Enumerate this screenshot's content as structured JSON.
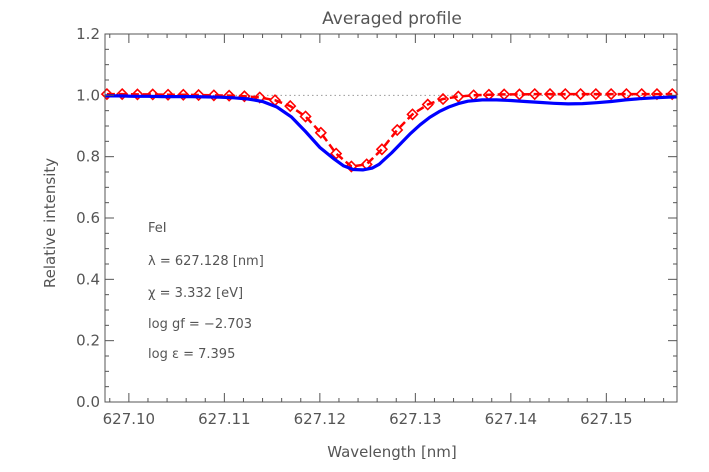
{
  "chart_data": {
    "type": "line",
    "title": "Averaged profile",
    "xlabel": "Wavelength [nm]",
    "ylabel": "Relative intensity",
    "xlim": [
      627.0975,
      627.1574
    ],
    "ylim": [
      0.0,
      1.2
    ],
    "x_ticks": [
      {
        "value": 627.1,
        "label": "627.10"
      },
      {
        "value": 627.11,
        "label": "627.11"
      },
      {
        "value": 627.12,
        "label": "627.12"
      },
      {
        "value": 627.13,
        "label": "627.13"
      },
      {
        "value": 627.14,
        "label": "627.14"
      },
      {
        "value": 627.15,
        "label": "627.15"
      }
    ],
    "y_ticks": [
      {
        "value": 0.0,
        "label": "0.0"
      },
      {
        "value": 0.2,
        "label": "0.2"
      },
      {
        "value": 0.4,
        "label": "0.4"
      },
      {
        "value": 0.6,
        "label": "0.6"
      },
      {
        "value": 0.8,
        "label": "0.8"
      },
      {
        "value": 1.0,
        "label": "1.0"
      },
      {
        "value": 1.2,
        "label": "1.2"
      }
    ],
    "reference_line": {
      "y": 1.0,
      "color": "#999999",
      "style": "dotted"
    },
    "annotations": [
      "FeI",
      "λ = 627.128 [nm]",
      "χ =  3.332 [eV]",
      "log gf = −2.703",
      "log ε =  7.395"
    ],
    "series": [
      {
        "marker": "diamond",
        "color": "#ff0000",
        "x": [
          627.0977,
          627.0993,
          627.1009,
          627.1025,
          627.1041,
          627.1057,
          627.1073,
          627.1089,
          627.1105,
          627.1121,
          627.1137,
          627.1153,
          627.1169,
          627.1185,
          627.1201,
          627.1217,
          627.1233,
          627.1249,
          627.1265,
          627.1281,
          627.1297,
          627.1313,
          627.1329,
          627.1345,
          627.1361,
          627.1377,
          627.1393,
          627.1409,
          627.1425,
          627.1441,
          627.1457,
          627.1473,
          627.1489,
          627.1505,
          627.1521,
          627.1537,
          627.1553,
          627.1569
        ],
        "y": [
          1.004,
          1.004,
          1.003,
          1.003,
          1.002,
          1.002,
          1.001,
          1.0,
          0.999,
          0.997,
          0.993,
          0.984,
          0.965,
          0.931,
          0.878,
          0.81,
          0.768,
          0.775,
          0.824,
          0.887,
          0.938,
          0.97,
          0.988,
          0.996,
          1.0,
          1.002,
          1.003,
          1.003,
          1.004,
          1.004,
          1.004,
          1.004,
          1.004,
          1.004,
          1.004,
          1.004,
          1.004,
          1.004
        ]
      },
      {
        "marker": "none",
        "color": "#0000ff",
        "x": [
          627.0975,
          627.099,
          627.1005,
          627.102,
          627.1035,
          627.105,
          627.1065,
          627.108,
          627.1095,
          627.111,
          627.1125,
          627.114,
          627.1155,
          627.117,
          627.1185,
          627.12,
          627.1215,
          627.1225,
          627.1235,
          627.1245,
          627.1255,
          627.1262,
          627.1268,
          627.1275,
          627.1285,
          627.1295,
          627.1305,
          627.1315,
          627.1325,
          627.1335,
          627.1345,
          627.1355,
          627.137,
          627.1385,
          627.14,
          627.1415,
          627.143,
          627.1445,
          627.146,
          627.1475,
          627.149,
          627.1505,
          627.152,
          627.1535,
          627.155,
          627.1565,
          627.1574
        ],
        "y": [
          0.998,
          0.998,
          0.997,
          0.997,
          0.996,
          0.996,
          0.996,
          0.995,
          0.994,
          0.992,
          0.988,
          0.98,
          0.962,
          0.93,
          0.882,
          0.83,
          0.792,
          0.77,
          0.758,
          0.757,
          0.763,
          0.775,
          0.792,
          0.812,
          0.844,
          0.876,
          0.904,
          0.928,
          0.947,
          0.962,
          0.973,
          0.981,
          0.985,
          0.985,
          0.983,
          0.98,
          0.977,
          0.974,
          0.972,
          0.973,
          0.976,
          0.98,
          0.985,
          0.989,
          0.992,
          0.994,
          0.995
        ]
      }
    ]
  }
}
